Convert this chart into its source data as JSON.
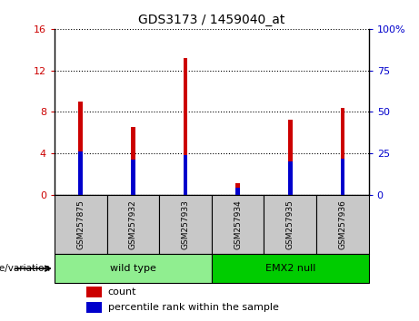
{
  "title": "GDS3173 / 1459040_at",
  "samples": [
    "GSM257875",
    "GSM257932",
    "GSM257933",
    "GSM257934",
    "GSM257935",
    "GSM257936"
  ],
  "count_values": [
    9.0,
    6.5,
    13.2,
    1.1,
    7.2,
    8.4
  ],
  "percentile_values": [
    26.0,
    21.0,
    24.0,
    4.5,
    20.0,
    22.0
  ],
  "groups": [
    {
      "label": "wild type",
      "color": "#90EE90",
      "span": [
        0,
        3
      ]
    },
    {
      "label": "EMX2 null",
      "color": "#00CC00",
      "span": [
        3,
        6
      ]
    }
  ],
  "group_label": "genotype/variation",
  "left_ylim": [
    0,
    16
  ],
  "right_ylim": [
    0,
    100
  ],
  "left_yticks": [
    0,
    4,
    8,
    12,
    16
  ],
  "right_yticks": [
    0,
    25,
    50,
    75,
    100
  ],
  "right_yticklabels": [
    "0",
    "25",
    "50",
    "75",
    "100%"
  ],
  "left_tick_color": "#CC0000",
  "right_tick_color": "#0000CC",
  "bar_color_count": "#CC0000",
  "bar_color_percentile": "#0000CC",
  "bar_width": 0.08,
  "grid_color": "black",
  "legend_count": "count",
  "legend_percentile": "percentile rank within the sample",
  "bg_color_ticks": "#C8C8C8",
  "group_border_color": "black"
}
